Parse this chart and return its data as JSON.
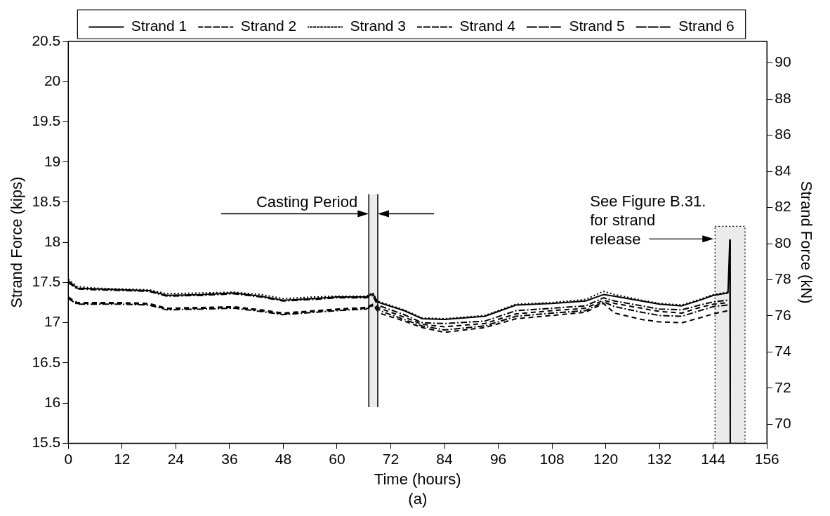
{
  "chart_data": {
    "type": "line",
    "xlabel": "Time (hours)",
    "ylabel": "Strand Force (kips)",
    "y2label": "Strand Force (kN)",
    "annotations": [
      "(a)"
    ],
    "bands": [
      {
        "axis": "x",
        "from": 67.1,
        "to": 69.1,
        "label": "Casting Period"
      },
      {
        "axis": "x",
        "from": 144.4,
        "to": 151.1,
        "label": "See Figure B.31. for strand release"
      }
    ],
    "x": [
      0,
      2,
      6,
      12,
      18,
      22,
      30,
      37,
      43,
      48,
      55,
      60,
      66.5,
      68,
      69,
      70,
      75,
      79,
      84,
      93,
      100,
      108,
      115.5,
      119.5,
      122,
      128,
      132,
      137,
      141,
      144,
      147.3
    ],
    "series": [
      {
        "name": "Strand 1",
        "color": "#000000",
        "line_style": "solid",
        "x": [
          0,
          2,
          6,
          12,
          18,
          22,
          30,
          37,
          43,
          48,
          55,
          60,
          66.5,
          68,
          69,
          70,
          75,
          79,
          84,
          93,
          100,
          108,
          115.5,
          119.5,
          122,
          128,
          132,
          137,
          141,
          144,
          147.3,
          147.7,
          147.8
        ],
        "values": [
          17.52,
          17.43,
          17.42,
          17.41,
          17.4,
          17.34,
          17.35,
          17.37,
          17.33,
          17.28,
          17.3,
          17.32,
          17.32,
          17.36,
          17.26,
          17.24,
          17.15,
          17.05,
          17.04,
          17.08,
          17.22,
          17.24,
          17.27,
          17.35,
          17.33,
          17.27,
          17.23,
          17.21,
          17.28,
          17.34,
          17.37,
          18.03,
          15.5
        ]
      },
      {
        "name": "Strand 2",
        "color": "#000000",
        "line_style": "dashed",
        "values": [
          17.31,
          17.24,
          17.24,
          17.24,
          17.23,
          17.17,
          17.18,
          17.19,
          17.15,
          17.11,
          17.14,
          17.16,
          17.18,
          17.22,
          17.15,
          17.11,
          17.02,
          16.94,
          16.88,
          16.94,
          17.05,
          17.09,
          17.13,
          17.24,
          17.12,
          17.04,
          17.01,
          17.0,
          17.06,
          17.11,
          17.15
        ]
      },
      {
        "name": "Strand 3",
        "color": "#000000",
        "line_style": "dotted",
        "values": [
          17.54,
          17.45,
          17.43,
          17.42,
          17.41,
          17.36,
          17.37,
          17.38,
          17.35,
          17.3,
          17.32,
          17.33,
          17.33,
          17.37,
          17.27,
          17.25,
          17.16,
          17.06,
          17.05,
          17.09,
          17.23,
          17.25,
          17.29,
          17.39,
          17.35,
          17.28,
          17.24,
          17.22,
          17.29,
          17.35,
          17.38
        ]
      },
      {
        "name": "Strand 4",
        "color": "#000000",
        "line_style": "dashed",
        "values": [
          17.32,
          17.25,
          17.25,
          17.25,
          17.24,
          17.18,
          17.19,
          17.2,
          17.16,
          17.12,
          17.15,
          17.17,
          17.19,
          17.23,
          17.2,
          17.17,
          17.07,
          16.98,
          16.95,
          16.99,
          17.11,
          17.15,
          17.18,
          17.28,
          17.24,
          17.18,
          17.14,
          17.12,
          17.19,
          17.23,
          17.25
        ]
      },
      {
        "name": "Strand 5",
        "color": "#000000",
        "line_style": "dashdot",
        "values": [
          17.3,
          17.23,
          17.23,
          17.23,
          17.22,
          17.16,
          17.17,
          17.18,
          17.14,
          17.1,
          17.13,
          17.15,
          17.17,
          17.21,
          17.18,
          17.14,
          17.04,
          16.96,
          16.91,
          16.96,
          17.08,
          17.12,
          17.15,
          17.26,
          17.2,
          17.13,
          17.09,
          17.08,
          17.15,
          17.2,
          17.22
        ]
      },
      {
        "name": "Strand 6",
        "color": "#000000",
        "line_style": "dashdot",
        "values": [
          17.5,
          17.42,
          17.41,
          17.4,
          17.39,
          17.33,
          17.34,
          17.36,
          17.32,
          17.27,
          17.29,
          17.31,
          17.31,
          17.34,
          17.22,
          17.2,
          17.1,
          17.0,
          16.99,
          17.02,
          17.15,
          17.18,
          17.21,
          17.31,
          17.27,
          17.21,
          17.17,
          17.16,
          17.22,
          17.26,
          17.28
        ]
      }
    ],
    "xlim": [
      0,
      156
    ],
    "xticks": [
      0,
      12,
      24,
      36,
      48,
      60,
      72,
      84,
      96,
      108,
      120,
      132,
      144,
      156
    ],
    "ylim": [
      15.5,
      20.5
    ],
    "yticks": [
      15.5,
      16,
      16.5,
      17,
      17.5,
      18,
      18.5,
      19,
      19.5,
      20,
      20.5
    ],
    "y2lim": [
      68.95,
      91.19
    ],
    "y2ticks": [
      70,
      72,
      74,
      76,
      78,
      80,
      82,
      84,
      86,
      88,
      90
    ],
    "grid": false,
    "legend": "top"
  }
}
